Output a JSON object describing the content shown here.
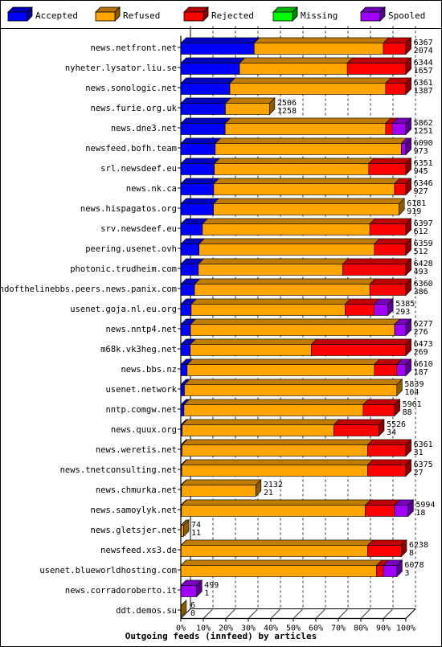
{
  "chart_data": {
    "type": "bar",
    "orientation": "horizontal",
    "stacked": true,
    "xlabel": "Outgoing feeds (innfeed) by articles",
    "xlim": [
      0,
      100
    ],
    "x_unit": "%",
    "grid": true,
    "legend_position": "top",
    "tick_labels": [
      "0%",
      "10%",
      "20%",
      "30%",
      "40%",
      "50%",
      "60%",
      "70%",
      "80%",
      "90%",
      "100%"
    ],
    "series": [
      {
        "name": "Accepted",
        "color": "#0000ff"
      },
      {
        "name": "Refused",
        "color": "#ffa500"
      },
      {
        "name": "Rejected",
        "color": "#ff0000"
      },
      {
        "name": "Missing",
        "color": "#00ff00"
      },
      {
        "name": "Spooled",
        "color": "#a000ff"
      }
    ],
    "rows": [
      {
        "label": "news.netfront.net",
        "total": "6367",
        "accepted": "2074",
        "pct": [
          32.6,
          57.4,
          10.0,
          0,
          0
        ]
      },
      {
        "label": "nyheter.lysator.liu.se",
        "total": "6344",
        "accepted": "1657",
        "pct": [
          26.1,
          47.9,
          26.0,
          0,
          0
        ]
      },
      {
        "label": "news.sonologic.net",
        "total": "6361",
        "accepted": "1387",
        "pct": [
          21.8,
          69.2,
          9.0,
          0,
          0
        ]
      },
      {
        "label": "news.furie.org.uk",
        "total": "2506",
        "accepted": "1258",
        "pct": [
          19.8,
          19.6,
          0,
          0,
          0
        ]
      },
      {
        "label": "news.dne3.net",
        "total": "5862",
        "accepted": "1251",
        "pct": [
          19.7,
          71.3,
          3.0,
          0,
          6.0
        ]
      },
      {
        "label": "newsfeed.bofh.team",
        "total": "6090",
        "accepted": "973",
        "pct": [
          15.3,
          82.7,
          0,
          0,
          2.0
        ]
      },
      {
        "label": "srl.newsdeef.eu",
        "total": "6351",
        "accepted": "945",
        "pct": [
          14.9,
          68.6,
          16.5,
          0,
          0
        ]
      },
      {
        "label": "news.nk.ca",
        "total": "6346",
        "accepted": "927",
        "pct": [
          14.6,
          80.4,
          5.0,
          0,
          0
        ]
      },
      {
        "label": "news.hispagatos.org",
        "total": "6181",
        "accepted": "919",
        "pct": [
          14.5,
          82.5,
          0,
          0,
          0
        ]
      },
      {
        "label": "srv.newsdeef.eu",
        "total": "6397",
        "accepted": "612",
        "pct": [
          9.6,
          74.4,
          16.0,
          0,
          0
        ]
      },
      {
        "label": "peering.usenet.ovh",
        "total": "6359",
        "accepted": "512",
        "pct": [
          8.1,
          77.9,
          14.0,
          0,
          0
        ]
      },
      {
        "label": "photonic.trudheim.com",
        "total": "6428",
        "accepted": "493",
        "pct": [
          7.8,
          64.2,
          28.0,
          0,
          0
        ]
      },
      {
        "label": "endofthelinebbs.peers.news.panix.com",
        "total": "6360",
        "accepted": "386",
        "pct": [
          6.1,
          77.9,
          16.0,
          0,
          0
        ]
      },
      {
        "label": "usenet.goja.nl.eu.org",
        "total": "5385",
        "accepted": "293",
        "pct": [
          4.6,
          68.4,
          13.0,
          0,
          6.0
        ]
      },
      {
        "label": "news.nntp4.net",
        "total": "6277",
        "accepted": "276",
        "pct": [
          4.3,
          90.7,
          0,
          0,
          5.0
        ]
      },
      {
        "label": "m68k.vk3heg.net",
        "total": "6473",
        "accepted": "269",
        "pct": [
          4.2,
          53.8,
          42.0,
          0,
          0
        ]
      },
      {
        "label": "news.bbs.nz",
        "total": "6610",
        "accepted": "187",
        "pct": [
          2.8,
          83.2,
          10.0,
          0,
          4.0
        ]
      },
      {
        "label": "usenet.network",
        "total": "5839",
        "accepted": "104",
        "pct": [
          1.6,
          94.4,
          0,
          0,
          0
        ]
      },
      {
        "label": "nntp.comgw.net",
        "total": "5961",
        "accepted": "88",
        "pct": [
          1.4,
          79.6,
          14.0,
          0,
          0
        ]
      },
      {
        "label": "news.quux.org",
        "total": "5526",
        "accepted": "34",
        "pct": [
          0.6,
          67.4,
          20.0,
          0,
          0
        ]
      },
      {
        "label": "news.weretis.net",
        "total": "6361",
        "accepted": "31",
        "pct": [
          0.5,
          82.5,
          17.0,
          0,
          0
        ]
      },
      {
        "label": "news.tnetconsulting.net",
        "total": "6375",
        "accepted": "27",
        "pct": [
          0.4,
          82.6,
          17.0,
          0,
          0
        ]
      },
      {
        "label": "news.chmurka.net",
        "total": "2132",
        "accepted": "21",
        "pct": [
          0.3,
          33.0,
          0,
          0,
          0
        ]
      },
      {
        "label": "news.samoylyk.net",
        "total": "5994",
        "accepted": "18",
        "pct": [
          0.3,
          81.7,
          13.0,
          0,
          6.0
        ]
      },
      {
        "label": "news.gletsjer.net",
        "total": "74",
        "accepted": "11",
        "pct": [
          0.2,
          1.0,
          0,
          0,
          0
        ]
      },
      {
        "label": "newsfeed.xs3.de",
        "total": "6238",
        "accepted": "8",
        "pct": [
          0.1,
          82.9,
          15.0,
          0,
          0
        ]
      },
      {
        "label": "usenet.blueworldhosting.com",
        "total": "6078",
        "accepted": "3",
        "pct": [
          0.05,
          86.95,
          3.0,
          0,
          6.0
        ]
      },
      {
        "label": "news.corradoroberto.it",
        "total": "499",
        "accepted": "1",
        "pct": [
          0.02,
          0,
          0,
          0,
          7.0
        ]
      },
      {
        "label": "ddt.demos.su",
        "total": "6",
        "accepted": "0",
        "pct": [
          0,
          0.1,
          0,
          0,
          0
        ]
      }
    ]
  }
}
